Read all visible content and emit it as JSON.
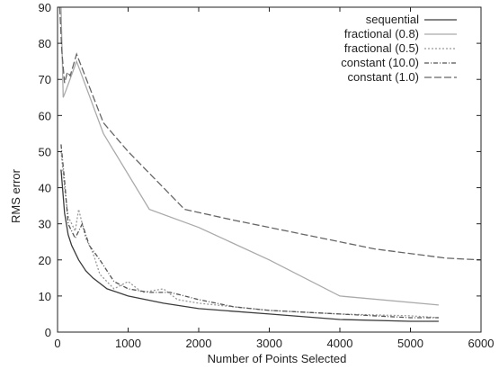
{
  "chart_data": {
    "type": "line",
    "xlabel": "Number of Points Selected",
    "ylabel": "RMS error",
    "xlim": [
      0,
      6000
    ],
    "ylim": [
      0,
      90
    ],
    "x_ticks": [
      "0",
      "1000",
      "2000",
      "3000",
      "4000",
      "5000",
      "6000"
    ],
    "y_ticks": [
      "0",
      "10",
      "20",
      "30",
      "40",
      "50",
      "60",
      "70",
      "80",
      "90"
    ],
    "grid": false,
    "legend_position": "top-right",
    "series": [
      {
        "name": "sequential",
        "color": "#3c3c3c",
        "dash": "",
        "x": [
          50,
          100,
          150,
          200,
          300,
          400,
          500,
          700,
          1000,
          1500,
          2000,
          3000,
          4000,
          5000,
          5400
        ],
        "y": [
          45,
          33,
          27,
          24,
          20,
          17,
          15,
          12,
          10,
          8,
          6.5,
          5,
          3.5,
          3,
          3
        ]
      },
      {
        "name": "fractional (0.8)",
        "color": "#aaaaaa",
        "dash": "",
        "x": [
          50,
          80,
          120,
          270,
          650,
          1300,
          2000,
          3000,
          4000,
          5400
        ],
        "y": [
          90,
          65,
          67,
          75,
          55,
          34,
          29,
          20,
          10,
          7.5
        ]
      },
      {
        "name": "fractional (0.5)",
        "color": "#999999",
        "dash": "2,2",
        "x": [
          50,
          100,
          150,
          250,
          300,
          400,
          500,
          600,
          800,
          1000,
          1200,
          1500,
          1700,
          2000,
          3000,
          4000,
          5000,
          5400
        ],
        "y": [
          50,
          40,
          32,
          28,
          34,
          26,
          22,
          16,
          12,
          14,
          11,
          12,
          9,
          8,
          6,
          5,
          4.5,
          4
        ]
      },
      {
        "name": "constant (10.0)",
        "color": "#555555",
        "dash": "5,2,1,2",
        "x": [
          50,
          100,
          150,
          250,
          350,
          450,
          600,
          800,
          1000,
          1300,
          1600,
          2000,
          2500,
          3000,
          4000,
          5000,
          5400
        ],
        "y": [
          52,
          42,
          30,
          26,
          30,
          24,
          20,
          14,
          12,
          11,
          11,
          9,
          7,
          6,
          5,
          4,
          4
        ]
      },
      {
        "name": "constant (1.0)",
        "color": "#666666",
        "dash": "8,3",
        "x": [
          30,
          60,
          100,
          140,
          180,
          270,
          650,
          1000,
          1500,
          1800,
          2500,
          3500,
          4500,
          5500,
          6000
        ],
        "y": [
          90,
          78,
          69,
          72,
          71,
          77,
          58,
          50,
          40,
          34,
          31,
          27,
          23,
          20.5,
          20
        ]
      }
    ]
  }
}
